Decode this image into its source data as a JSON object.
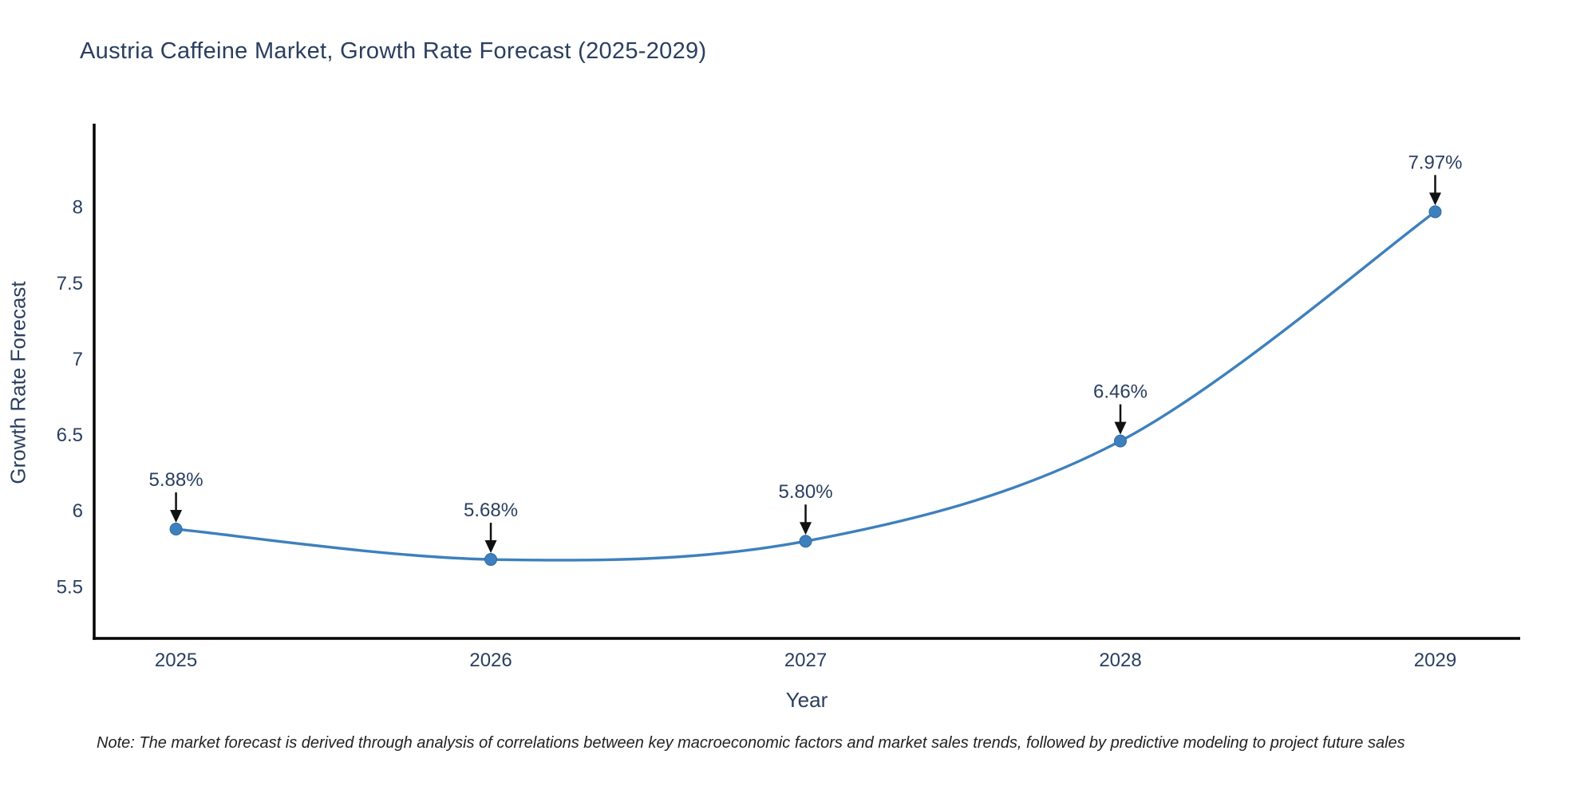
{
  "figure": {
    "note": "Note: The market forecast is derived through analysis of correlations between key macroeconomic factors and market sales trends, followed by predictive modeling to project future sales"
  },
  "chart_data": {
    "type": "line",
    "title": "Austria Caffeine Market, Growth Rate Forecast (2025-2029)",
    "xlabel": "Year",
    "ylabel": "Growth Rate Forecast",
    "x": [
      2025,
      2026,
      2027,
      2028,
      2029
    ],
    "x_tick_labels": [
      "2025",
      "2026",
      "2027",
      "2028",
      "2029"
    ],
    "values": [
      5.88,
      5.68,
      5.8,
      6.46,
      7.97
    ],
    "point_labels": [
      "5.88%",
      "5.68%",
      "5.80%",
      "6.46%",
      "7.97%"
    ],
    "y_ticks": [
      5.5,
      6,
      6.5,
      7,
      7.5,
      8
    ],
    "y_tick_labels": [
      "5.5",
      "6",
      "6.5",
      "7",
      "7.5",
      "8"
    ],
    "xlim": [
      2024.74,
      2029.27
    ],
    "ylim": [
      5.16,
      8.55
    ],
    "grid": false,
    "legend": "none",
    "line_shape": "spline",
    "colors": {
      "line": "#3e80bd",
      "marker": "#3e80bd",
      "marker_edge": "#2f6a9e",
      "axis": "#000000",
      "tick_text": "#2a3f5f",
      "annotation_text": "#2a3f5f",
      "annotation_arrow": "#111111",
      "title_text": "#2a3f5f",
      "note_text": "#222222",
      "background": "#ffffff"
    }
  }
}
